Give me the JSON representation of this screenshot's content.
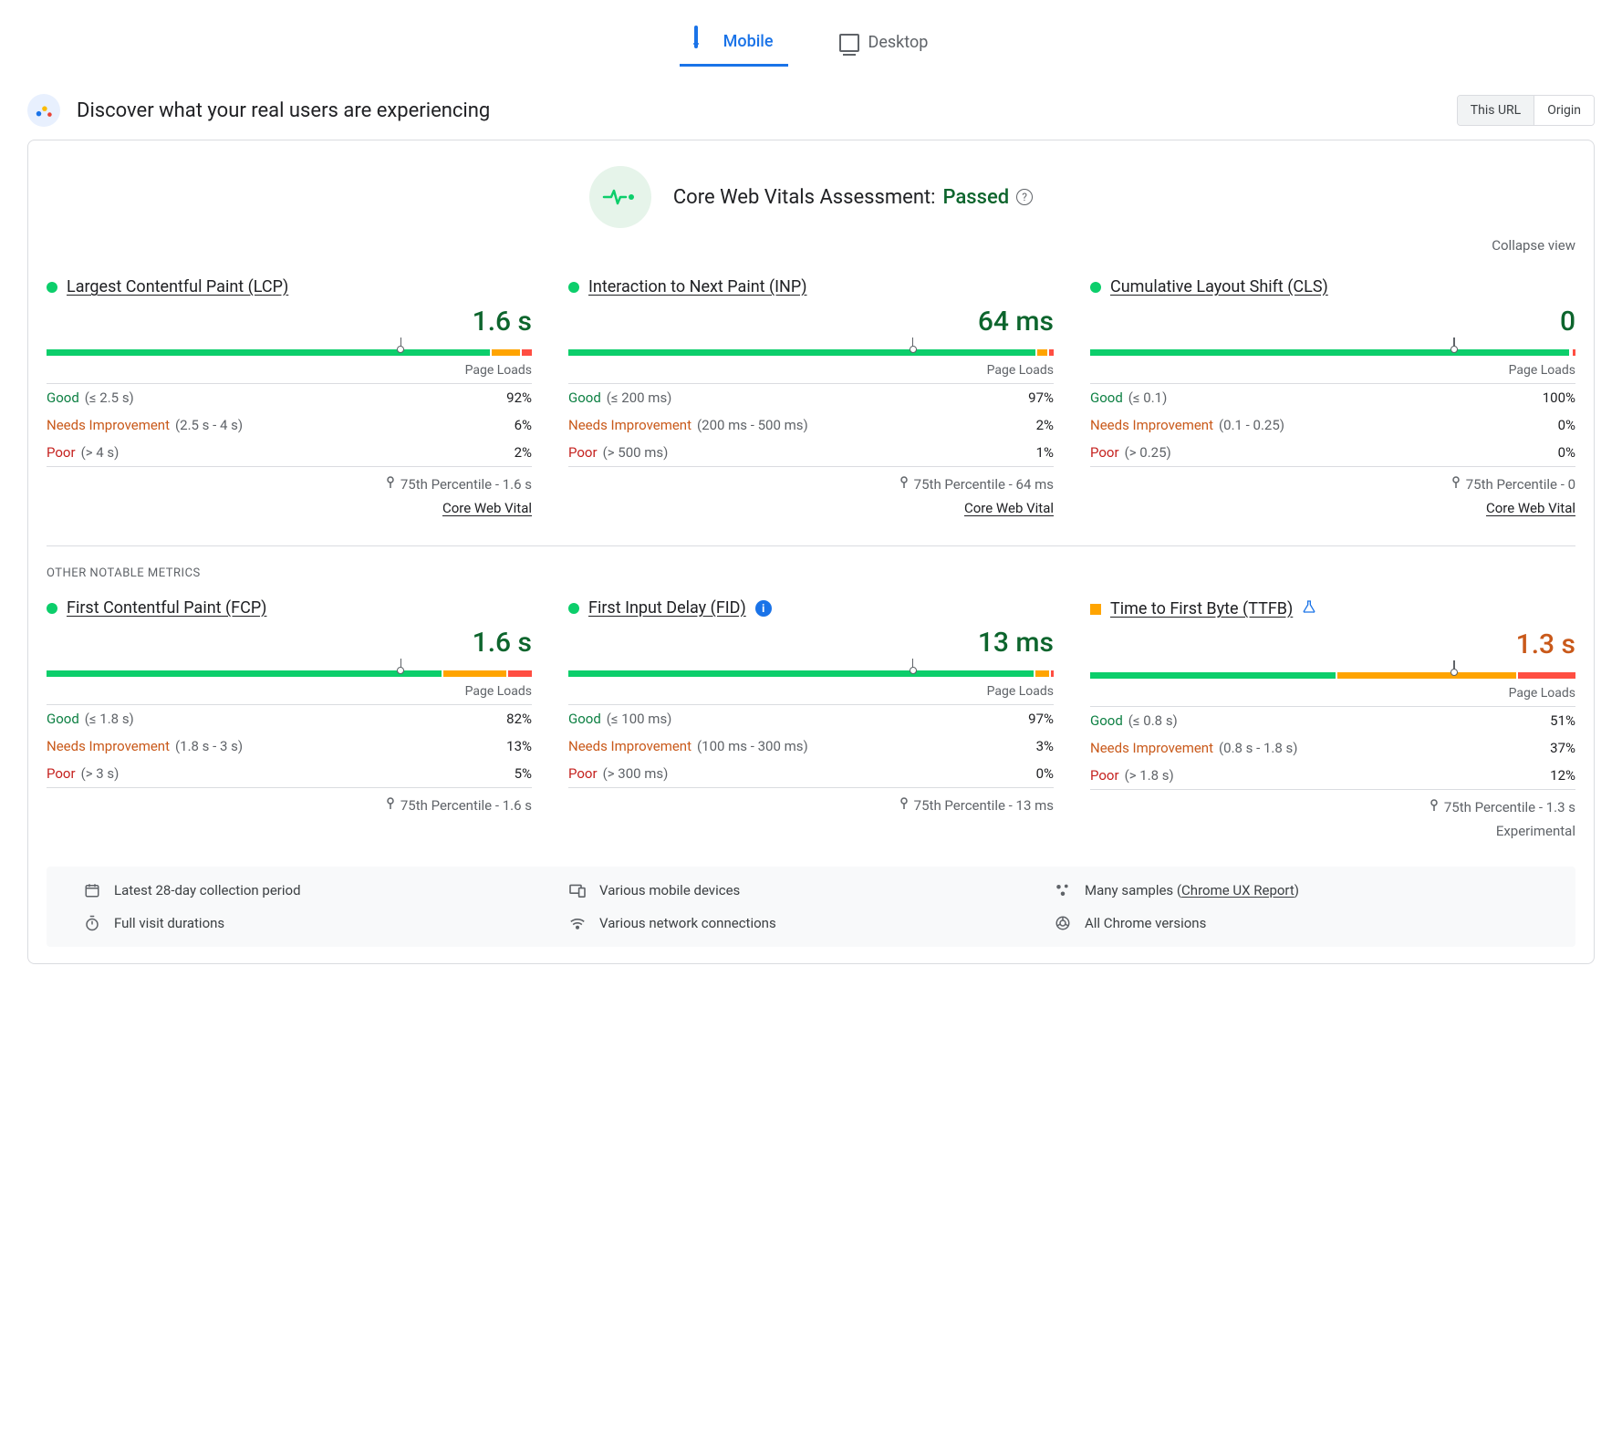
{
  "colors": {
    "good": "#0cce6b",
    "needs": "#ffa400",
    "poor": "#ff4e42",
    "good_text": "#0d8043",
    "needs_text": "#c9591a",
    "poor_text": "#c5221f",
    "good_dark": "#0d652d",
    "blue": "#1a73e8",
    "grey": "#5f6368"
  },
  "tabs": {
    "mobile": "Mobile",
    "desktop": "Desktop",
    "active": "mobile"
  },
  "header": {
    "title": "Discover what your real users are experiencing"
  },
  "scope": {
    "this_url": "This URL",
    "origin": "Origin",
    "active": "this_url"
  },
  "assessment": {
    "label": "Core Web Vitals Assessment:",
    "status": "Passed"
  },
  "collapse": "Collapse view",
  "page_loads_label": "Page Loads",
  "percentile_prefix": "75th Percentile - ",
  "core_web_vital_link": "Core Web Vital",
  "other_label": "OTHER NOTABLE METRICS",
  "experimental_label": "Experimental",
  "distribution_labels": {
    "good": "Good",
    "needs": "Needs Improvement",
    "poor": "Poor"
  },
  "metrics": {
    "lcp": {
      "name": "Largest Contentful Paint (LCP)",
      "status": "good",
      "value": "1.6 s",
      "marker_percent": 73,
      "segments": [
        92,
        6,
        2
      ],
      "ranges": {
        "good": "(≤ 2.5 s)",
        "needs": "(2.5 s - 4 s)",
        "poor": "(> 4 s)"
      },
      "percents": {
        "good": "92%",
        "needs": "6%",
        "poor": "2%"
      },
      "percentile_value": "1.6 s",
      "is_core": true
    },
    "inp": {
      "name": "Interaction to Next Paint (INP)",
      "status": "good",
      "value": "64 ms",
      "marker_percent": 71,
      "segments": [
        97,
        2,
        1
      ],
      "ranges": {
        "good": "(≤ 200 ms)",
        "needs": "(200 ms - 500 ms)",
        "poor": "(> 500 ms)"
      },
      "percents": {
        "good": "97%",
        "needs": "2%",
        "poor": "1%"
      },
      "percentile_value": "64 ms",
      "is_core": true
    },
    "cls": {
      "name": "Cumulative Layout Shift (CLS)",
      "status": "good",
      "value": "0",
      "marker_percent": 75,
      "segments": [
        100,
        0,
        0
      ],
      "ranges": {
        "good": "(≤ 0.1)",
        "needs": "(0.1 - 0.25)",
        "poor": "(> 0.25)"
      },
      "percents": {
        "good": "100%",
        "needs": "0%",
        "poor": "0%"
      },
      "percentile_value": "0",
      "is_core": true
    },
    "fcp": {
      "name": "First Contentful Paint (FCP)",
      "status": "good",
      "value": "1.6 s",
      "marker_percent": 73,
      "segments": [
        82,
        13,
        5
      ],
      "ranges": {
        "good": "(≤ 1.8 s)",
        "needs": "(1.8 s - 3 s)",
        "poor": "(> 3 s)"
      },
      "percents": {
        "good": "82%",
        "needs": "13%",
        "poor": "5%"
      },
      "percentile_value": "1.6 s",
      "note_icon": null
    },
    "fid": {
      "name": "First Input Delay (FID)",
      "status": "good",
      "value": "13 ms",
      "marker_percent": 71,
      "segments": [
        97,
        3,
        0.5
      ],
      "ranges": {
        "good": "(≤ 100 ms)",
        "needs": "(100 ms - 300 ms)",
        "poor": "(> 300 ms)"
      },
      "percents": {
        "good": "97%",
        "needs": "3%",
        "poor": "0%"
      },
      "percentile_value": "13 ms",
      "note_icon": "info"
    },
    "ttfb": {
      "name": "Time to First Byte (TTFB)",
      "status": "needs",
      "value": "1.3 s",
      "marker_percent": 75,
      "segments": [
        51,
        37,
        12
      ],
      "ranges": {
        "good": "(≤ 0.8 s)",
        "needs": "(0.8 s - 1.8 s)",
        "poor": "(> 1.8 s)"
      },
      "percents": {
        "good": "51%",
        "needs": "37%",
        "poor": "12%"
      },
      "percentile_value": "1.3 s",
      "note_icon": "flask",
      "experimental": true
    }
  },
  "footer": {
    "period": "Latest 28-day collection period",
    "devices": "Various mobile devices",
    "samples_prefix": "Many samples (",
    "samples_link": "Chrome UX Report",
    "samples_suffix": ")",
    "durations": "Full visit durations",
    "connections": "Various network connections",
    "versions": "All Chrome versions"
  }
}
